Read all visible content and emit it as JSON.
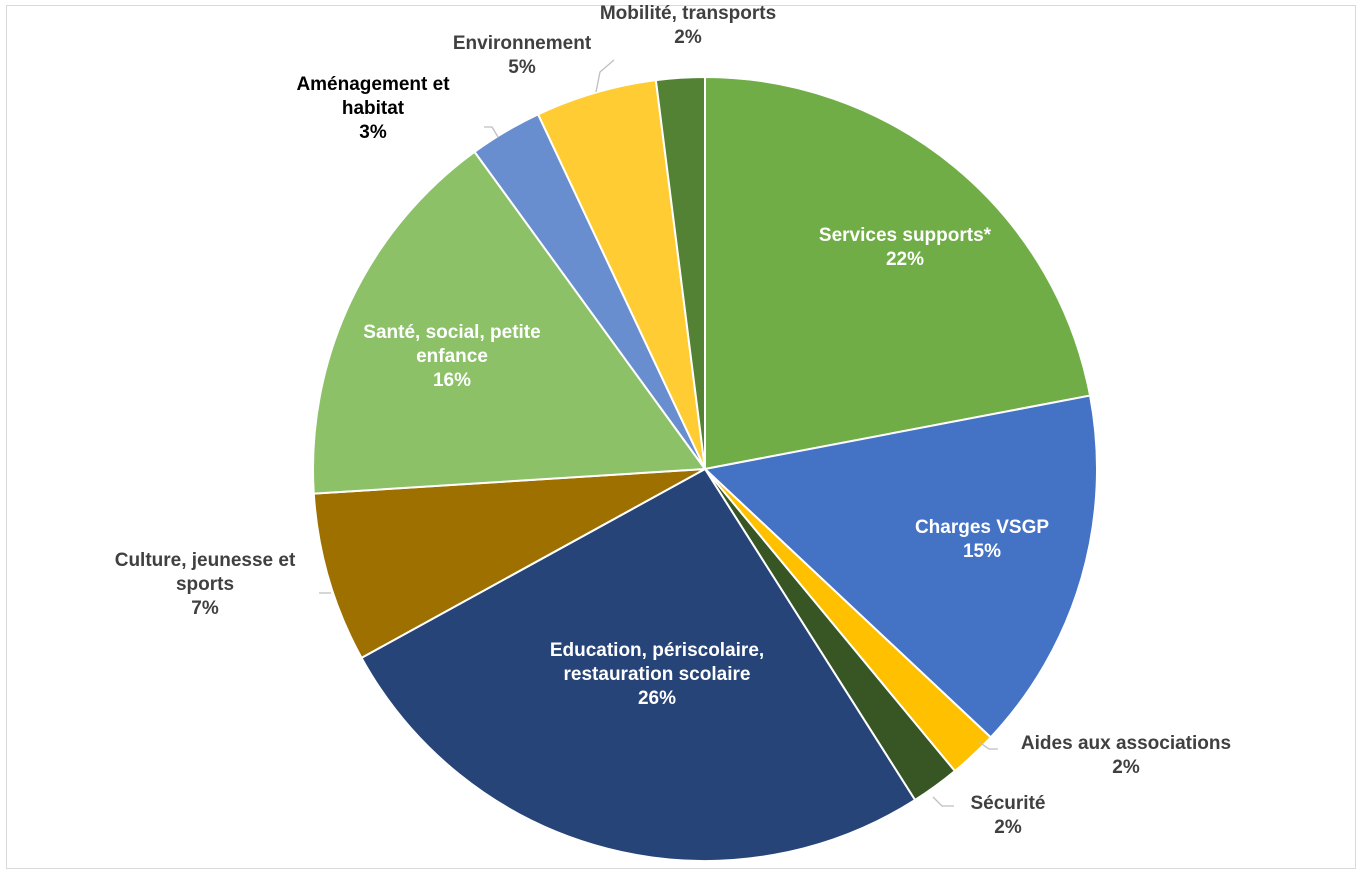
{
  "chart_data": {
    "type": "pie",
    "title": "",
    "unit": "%",
    "start": "12 o'clock",
    "direction": "clockwise",
    "slices": [
      {
        "label": [
          "Services supports*"
        ],
        "pct": "22%",
        "value": 22,
        "color": "#70AD47",
        "text_color": "#ffffff",
        "label_pos": "inside"
      },
      {
        "label": [
          "Charges VSGP"
        ],
        "pct": "15%",
        "value": 15,
        "color": "#4472C4",
        "text_color": "#ffffff",
        "label_pos": "inside"
      },
      {
        "label": [
          "Aides aux associations"
        ],
        "pct": "2%",
        "value": 2,
        "color": "#FFC000",
        "text_color": "#404040",
        "label_pos": "outside"
      },
      {
        "label": [
          "Sécurité"
        ],
        "pct": "2%",
        "value": 2,
        "color": "#375623",
        "text_color": "#404040",
        "label_pos": "outside"
      },
      {
        "label": [
          "Education, périscolaire,",
          "restauration scolaire"
        ],
        "pct": "26%",
        "value": 26,
        "color": "#264478",
        "text_color": "#ffffff",
        "label_pos": "inside"
      },
      {
        "label": [
          "Culture, jeunesse et",
          "sports"
        ],
        "pct": "7%",
        "value": 7,
        "color": "#9E7000",
        "text_color": "#404040",
        "label_pos": "outside"
      },
      {
        "label": [
          "Santé, social, petite",
          "enfance"
        ],
        "pct": "16%",
        "value": 16,
        "color": "#8CC168",
        "text_color": "#ffffff",
        "label_pos": "inside"
      },
      {
        "label": [
          "Aménagement et",
          "habitat"
        ],
        "pct": "3%",
        "value": 3,
        "color": "#698ED0",
        "text_color": "#000000",
        "label_pos": "outside"
      },
      {
        "label": [
          "Environnement"
        ],
        "pct": "5%",
        "value": 5,
        "color": "#FFCD33",
        "text_color": "#404040",
        "label_pos": "outside"
      },
      {
        "label": [
          "Mobilité, transports"
        ],
        "pct": "2%",
        "value": 2,
        "color": "#548235",
        "text_color": "#404040",
        "label_pos": "outside"
      }
    ]
  }
}
